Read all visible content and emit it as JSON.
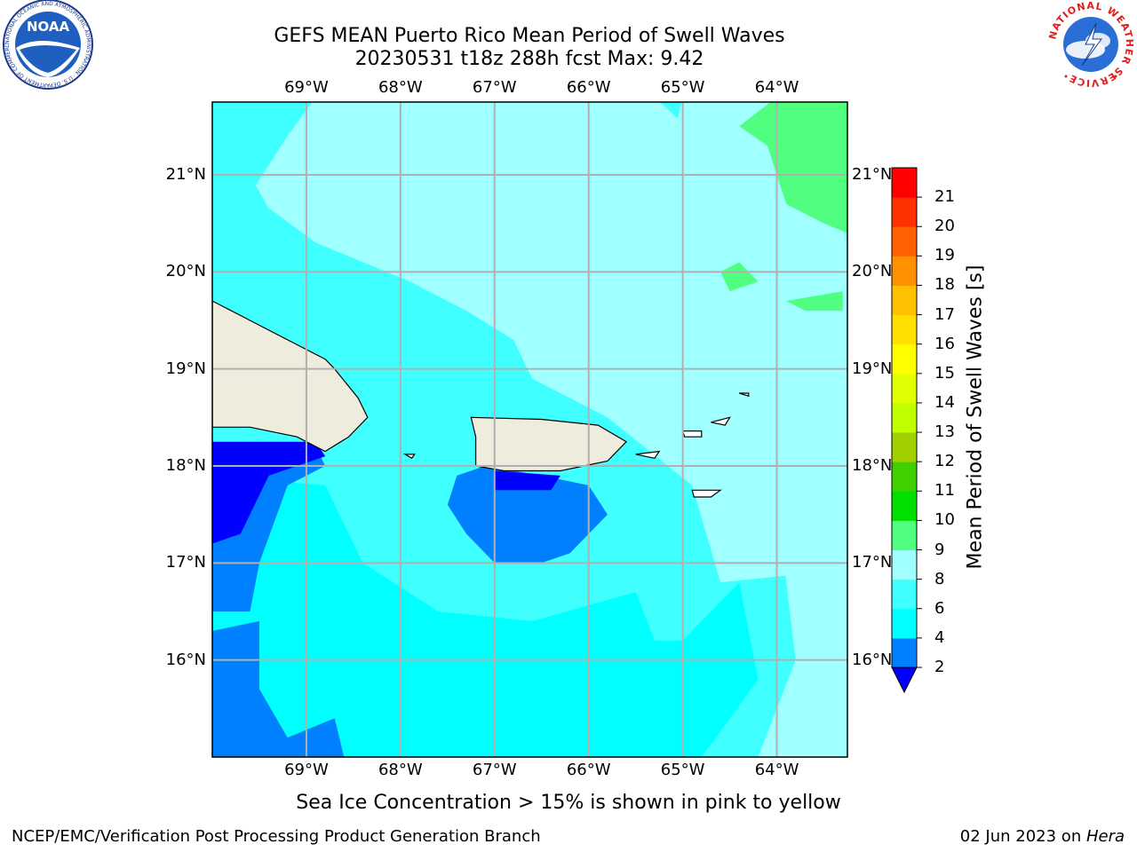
{
  "title": {
    "line1": "GEFS MEAN Puerto Rico Mean Period of Swell Waves",
    "line2": "20230531 t18z 288h fcst   Max: 9.42"
  },
  "map": {
    "lon_ticks": [
      "69°W",
      "68°W",
      "67°W",
      "66°W",
      "65°W",
      "64°W"
    ],
    "lat_ticks": [
      "21°N",
      "20°N",
      "19°N",
      "18°N",
      "17°N",
      "16°N"
    ],
    "extent": {
      "lon": [
        -70.0,
        -63.25
      ],
      "lat": [
        15.0,
        21.75
      ]
    },
    "gridlines": true,
    "land_color": "#eeecdc"
  },
  "colorbar": {
    "label": "Mean Period of Swell Waves [s]",
    "ticks": [
      "2",
      "4",
      "6",
      "8",
      "9",
      "10",
      "11",
      "12",
      "13",
      "14",
      "15",
      "16",
      "17",
      "18",
      "19",
      "20",
      "21"
    ],
    "under_color": "#0000ff",
    "colors": [
      "#0080ff",
      "#00ffff",
      "#40ffff",
      "#a0ffff",
      "#50ff80",
      "#00e000",
      "#40d000",
      "#a0d000",
      "#c0ff00",
      "#e0ff00",
      "#ffff00",
      "#ffe000",
      "#ffc000",
      "#ff9000",
      "#ff6000",
      "#ff3000",
      "#ff0000"
    ]
  },
  "field_colors": {
    "lt2": "#0000ff",
    "c2_4": "#0080ff",
    "c4_6": "#00ffff",
    "c6_8": "#40ffff",
    "c8_9": "#a0ffff",
    "c9_10": "#50ff80"
  },
  "footer": {
    "subtitle": "Sea Ice Concentration > 15% is shown in pink to yellow",
    "credit": "NCEP/EMC/Verification Post Processing Product Generation Branch",
    "date": "02 Jun 2023 on ",
    "host": "Hera"
  },
  "logos": {
    "left": {
      "text": "NOAA",
      "ring_text": "NATIONAL OCEANIC AND ATMOSPHERIC ADMINISTRATION · U.S. DEPARTMENT OF COMMERCE"
    },
    "right": {
      "ring_text": "NATIONAL WEATHER SERVICE"
    }
  }
}
